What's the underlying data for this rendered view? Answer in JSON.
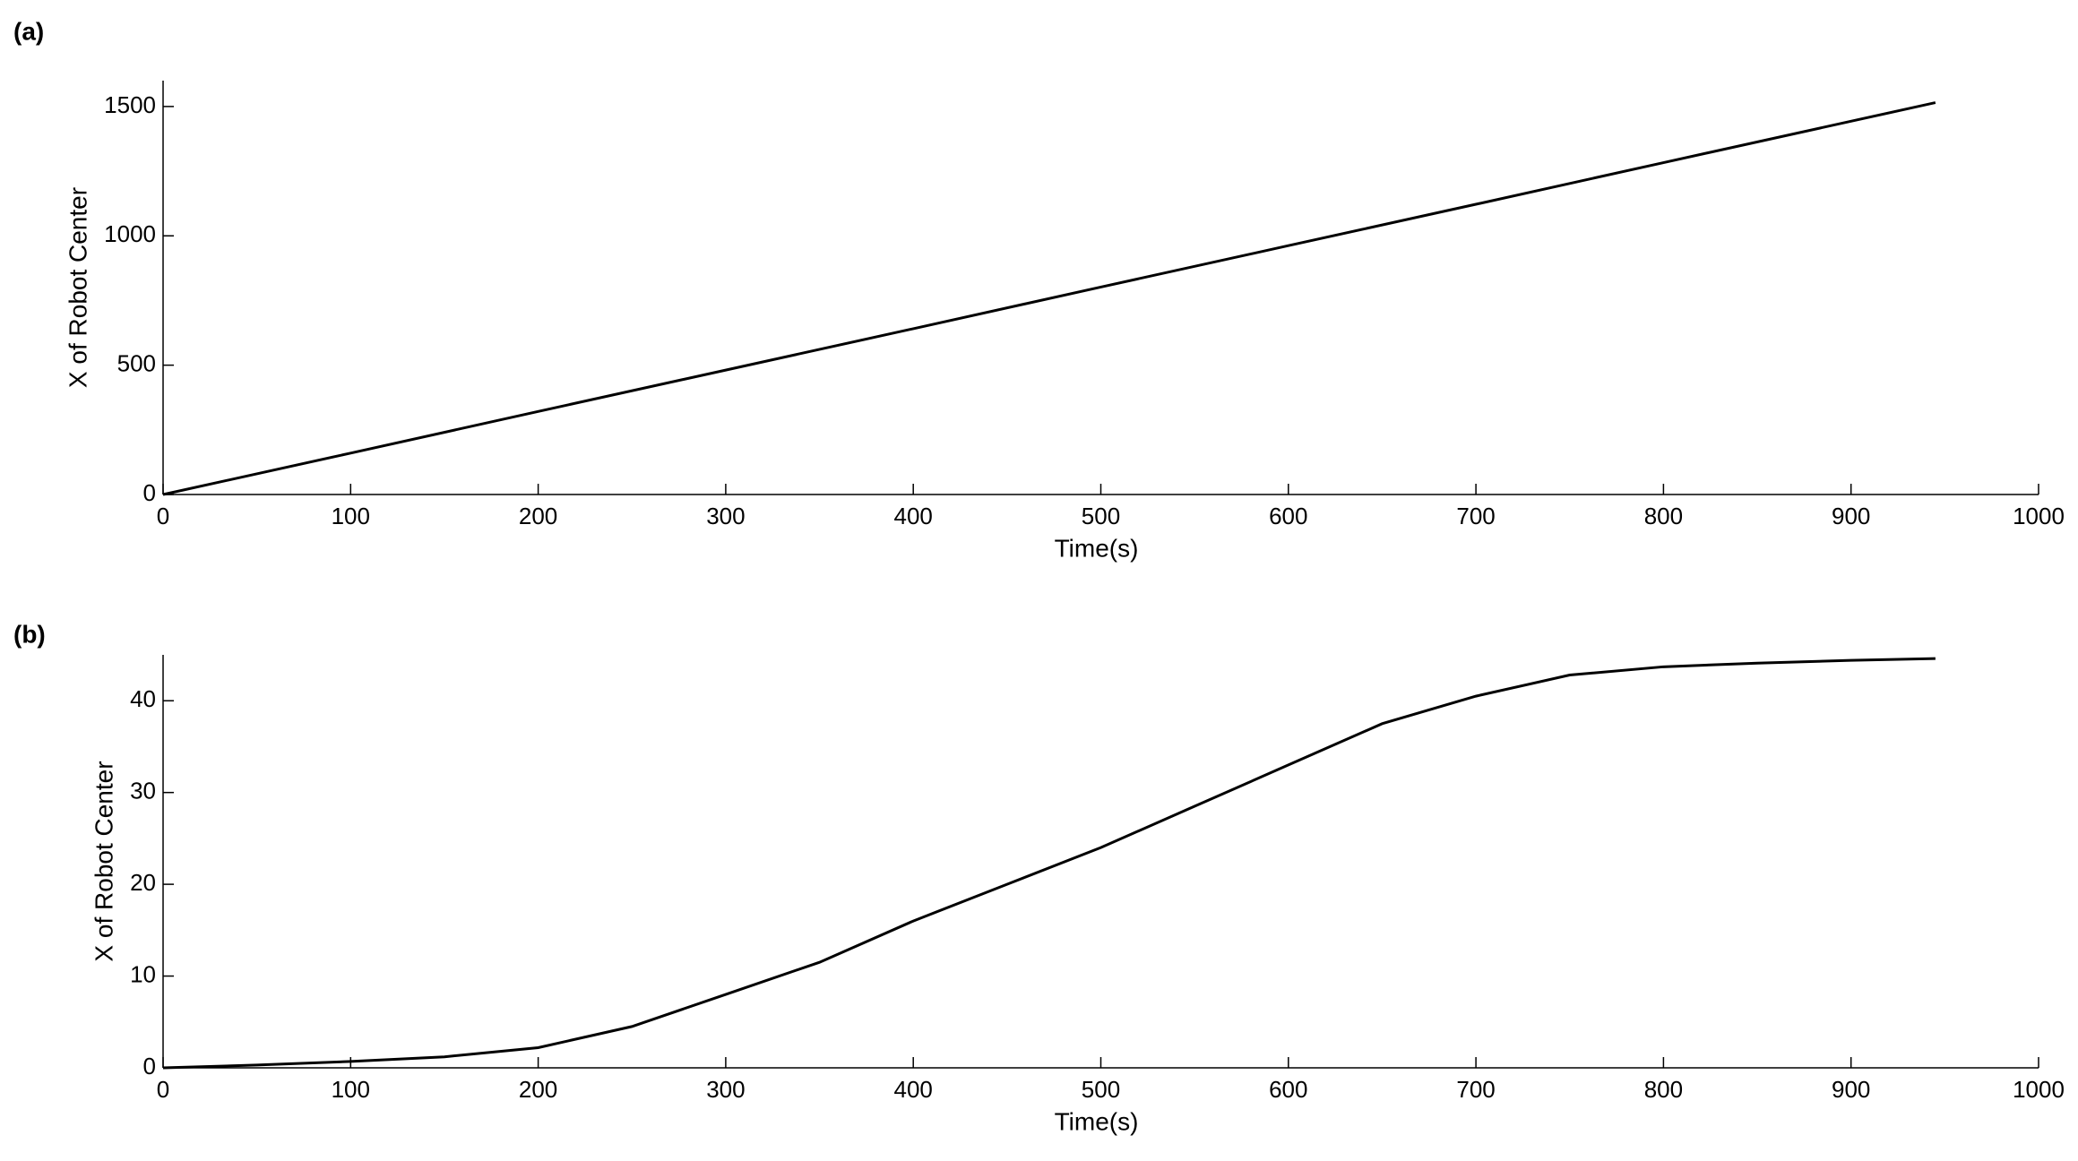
{
  "chart_data": [
    {
      "type": "line",
      "label": "(a)",
      "x_label": "Time(s)",
      "y_label": "X of Robot Center",
      "xlim": [
        0,
        1000
      ],
      "xticks": [
        0,
        100,
        200,
        300,
        400,
        500,
        600,
        700,
        800,
        900,
        1000
      ],
      "ylim": [
        0,
        1600
      ],
      "yticks": [
        0,
        500,
        1000,
        1500
      ],
      "x": [
        0,
        100,
        200,
        300,
        400,
        500,
        600,
        700,
        800,
        900,
        945
      ],
      "series": [
        {
          "color": "#000000",
          "values": [
            0,
            160,
            321,
            481,
            641,
            802,
            962,
            1122,
            1283,
            1443,
            1515
          ]
        }
      ]
    },
    {
      "type": "line",
      "label": "(b)",
      "x_label": "Time(s)",
      "y_label": "X of Robot Center",
      "xlim": [
        0,
        1000
      ],
      "xticks": [
        0,
        100,
        200,
        300,
        400,
        500,
        600,
        700,
        800,
        900,
        1000
      ],
      "ylim": [
        0,
        45
      ],
      "yticks": [
        0,
        10,
        20,
        30,
        40
      ],
      "x": [
        0,
        50,
        100,
        150,
        200,
        250,
        300,
        350,
        400,
        450,
        500,
        550,
        600,
        650,
        700,
        750,
        800,
        850,
        900,
        945
      ],
      "series": [
        {
          "color": "#000000",
          "values": [
            0,
            0.3,
            0.7,
            1.2,
            2.2,
            4.5,
            8,
            11.5,
            16,
            20,
            24,
            28.5,
            33,
            37.5,
            40.5,
            42.8,
            43.7,
            44.1,
            44.4,
            44.6
          ]
        }
      ]
    }
  ]
}
